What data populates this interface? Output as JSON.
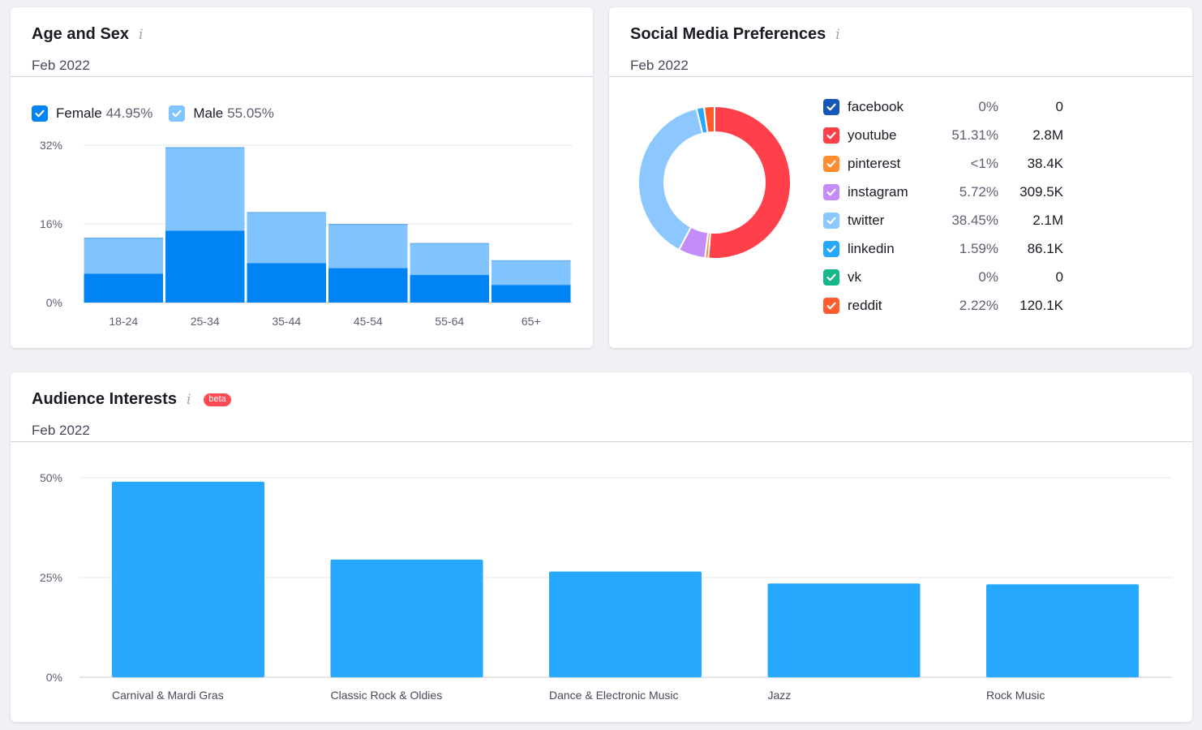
{
  "age_sex": {
    "title": "Age and Sex",
    "info": "i",
    "date": "Feb 2022",
    "legend": [
      {
        "name": "Female",
        "value": "44.95%",
        "color": "#0084f4"
      },
      {
        "name": "Male",
        "value": "55.05%",
        "color": "#82c4ff"
      }
    ]
  },
  "social": {
    "title": "Social Media Preferences",
    "info": "i",
    "date": "Feb 2022",
    "rows": [
      {
        "name": "facebook",
        "pct": "0%",
        "count": "0",
        "color": "#1557b6",
        "share": 0
      },
      {
        "name": "youtube",
        "pct": "51.31%",
        "count": "2.8M",
        "color": "#ff3f4a",
        "share": 51.31
      },
      {
        "name": "pinterest",
        "pct": "<1%",
        "count": "38.4K",
        "color": "#ff8c2e",
        "share": 0.71
      },
      {
        "name": "instagram",
        "pct": "5.72%",
        "count": "309.5K",
        "color": "#c38cf8",
        "share": 5.72
      },
      {
        "name": "twitter",
        "pct": "38.45%",
        "count": "2.1M",
        "color": "#8cc8ff",
        "share": 38.45
      },
      {
        "name": "linkedin",
        "pct": "1.59%",
        "count": "86.1K",
        "color": "#27a8ff",
        "share": 1.59
      },
      {
        "name": "vk",
        "pct": "0%",
        "count": "0",
        "color": "#14b88a",
        "share": 0
      },
      {
        "name": "reddit",
        "pct": "2.22%",
        "count": "120.1K",
        "color": "#ff5c2e",
        "share": 2.22
      }
    ]
  },
  "interests": {
    "title": "Audience Interests",
    "info": "i",
    "badge": "beta",
    "date": "Feb 2022"
  },
  "chart_data": [
    {
      "type": "bar",
      "stacked": true,
      "categories": [
        "18-24",
        "25-34",
        "35-44",
        "45-54",
        "55-64",
        "65+"
      ],
      "series": [
        {
          "name": "Female",
          "values": [
            5.9,
            14.6,
            8.0,
            7.0,
            5.6,
            3.6
          ],
          "color": "#0084f4"
        },
        {
          "name": "Male",
          "values": [
            7.3,
            17.0,
            10.4,
            9.0,
            6.5,
            5.0
          ],
          "color": "#82c4ff"
        }
      ],
      "y_ticks": [
        "0%",
        "16%",
        "32%"
      ],
      "ylim": [
        0,
        32
      ],
      "grid": true
    },
    {
      "type": "pie",
      "donut": true,
      "labels": [
        "youtube",
        "pinterest",
        "instagram",
        "twitter",
        "linkedin",
        "reddit"
      ],
      "values": [
        51.31,
        0.71,
        5.72,
        38.45,
        1.59,
        2.22
      ]
    },
    {
      "type": "bar",
      "categories": [
        "Carnival & Mardi Gras",
        "Classic Rock & Oldies",
        "Dance & Electronic Music",
        "Jazz",
        "Rock Music"
      ],
      "values": [
        49,
        29.5,
        26.5,
        23.5,
        23.3
      ],
      "color": "#27a8ff",
      "y_ticks": [
        "0%",
        "25%",
        "50%"
      ],
      "ylim": [
        0,
        50
      ],
      "grid": true
    }
  ]
}
